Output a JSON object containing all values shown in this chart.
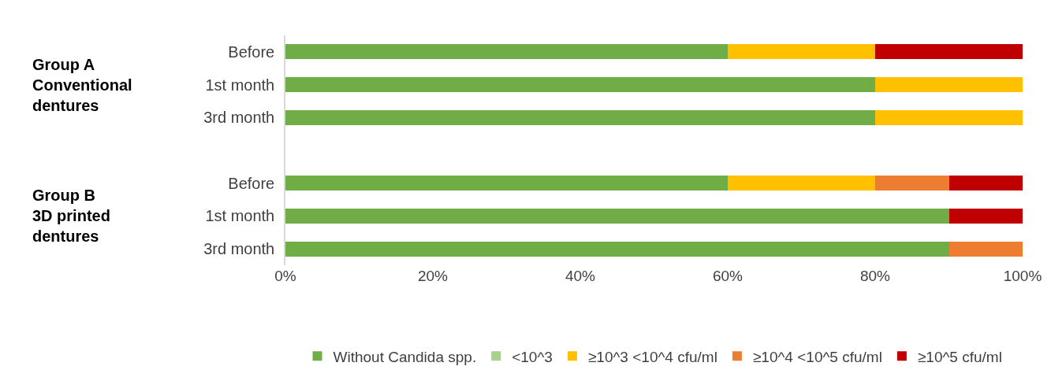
{
  "chart_data": {
    "type": "bar",
    "orientation": "horizontal",
    "stacked": true,
    "categories": [
      "Before",
      "1st month",
      "3rd month",
      null,
      "Before",
      "1st month",
      "3rd month"
    ],
    "series": [
      {
        "name": "Without Candida spp.",
        "color": "#70ad47",
        "values": [
          60,
          80,
          80,
          null,
          60,
          90,
          90
        ]
      },
      {
        "name": "<10^3",
        "color": "#a9d18e",
        "values": [
          0,
          0,
          0,
          null,
          0,
          0,
          0
        ]
      },
      {
        "name": "≥10^3 <10^4 cfu/ml",
        "color": "#ffc000",
        "values": [
          20,
          20,
          20,
          null,
          20,
          0,
          0
        ]
      },
      {
        "name": "≥10^4 <10^5 cfu/ml",
        "color": "#ed7d31",
        "values": [
          0,
          0,
          0,
          null,
          10,
          0,
          10
        ]
      },
      {
        "name": "≥10^5 cfu/ml",
        "color": "#c00000",
        "values": [
          20,
          0,
          0,
          null,
          10,
          10,
          0
        ]
      }
    ],
    "xlim": [
      0,
      100
    ],
    "xticks": [
      {
        "value": 0,
        "label": "0%"
      },
      {
        "value": 20,
        "label": "20%"
      },
      {
        "value": 40,
        "label": "40%"
      },
      {
        "value": 60,
        "label": "60%"
      },
      {
        "value": 80,
        "label": "80%"
      },
      {
        "value": 100,
        "label": "100%"
      }
    ],
    "annotations": [
      "Group A\nConventional\ndentures",
      "Group B\n3D printed\ndentures"
    ],
    "legend": "bottom"
  }
}
